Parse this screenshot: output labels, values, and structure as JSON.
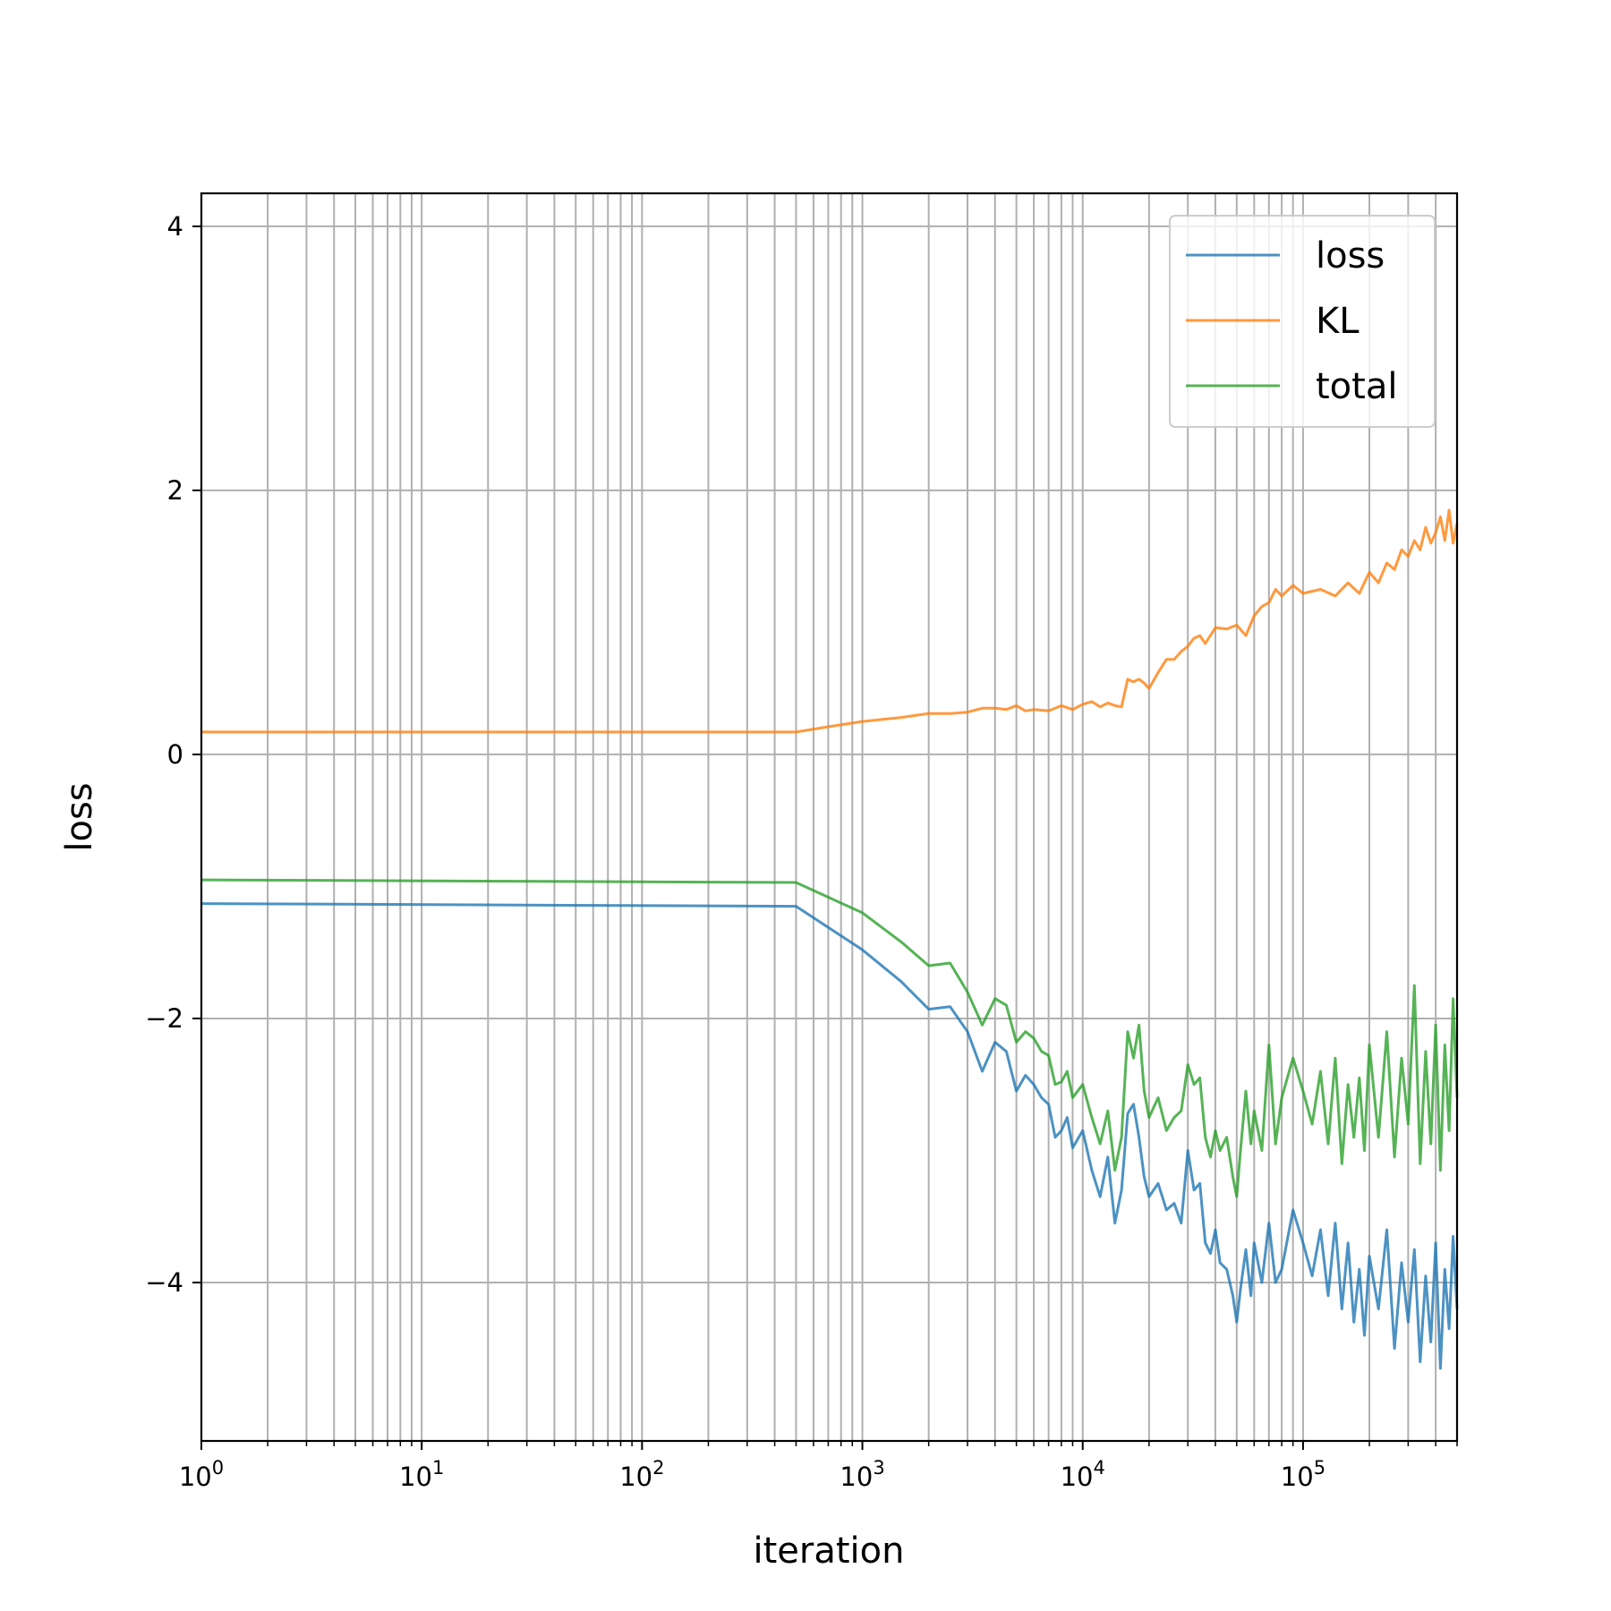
{
  "chart_data": {
    "type": "line",
    "title": "",
    "xlabel": "iteration",
    "ylabel": "loss",
    "xscale": "log",
    "xlim": [
      1,
      500000
    ],
    "ylim": [
      -5.2,
      4.25
    ],
    "grid": true,
    "grid_minor_x": true,
    "legend_position": "top-right",
    "x_ticks": [
      {
        "value": 1,
        "base": "10",
        "exp": "0"
      },
      {
        "value": 10,
        "base": "10",
        "exp": "1"
      },
      {
        "value": 100,
        "base": "10",
        "exp": "2"
      },
      {
        "value": 1000,
        "base": "10",
        "exp": "3"
      },
      {
        "value": 10000,
        "base": "10",
        "exp": "4"
      },
      {
        "value": 100000,
        "base": "10",
        "exp": "5"
      }
    ],
    "y_ticks": [
      {
        "value": -4,
        "label": "−4"
      },
      {
        "value": -2,
        "label": "−2"
      },
      {
        "value": 0,
        "label": "0"
      },
      {
        "value": 2,
        "label": "2"
      },
      {
        "value": 4,
        "label": "4"
      }
    ],
    "series": [
      {
        "name": "loss",
        "color": "#1f77b4",
        "points": [
          [
            1,
            -1.13
          ],
          [
            500,
            -1.15
          ],
          [
            1000,
            -1.48
          ],
          [
            1500,
            -1.72
          ],
          [
            2000,
            -1.93
          ],
          [
            2500,
            -1.91
          ],
          [
            3000,
            -2.1
          ],
          [
            3500,
            -2.4
          ],
          [
            4000,
            -2.18
          ],
          [
            4500,
            -2.25
          ],
          [
            5000,
            -2.55
          ],
          [
            5500,
            -2.43
          ],
          [
            6000,
            -2.5
          ],
          [
            6500,
            -2.6
          ],
          [
            7000,
            -2.65
          ],
          [
            7500,
            -2.9
          ],
          [
            8000,
            -2.85
          ],
          [
            8500,
            -2.75
          ],
          [
            9000,
            -2.98
          ],
          [
            10000,
            -2.85
          ],
          [
            11000,
            -3.15
          ],
          [
            12000,
            -3.35
          ],
          [
            13000,
            -3.05
          ],
          [
            14000,
            -3.55
          ],
          [
            15000,
            -3.3
          ],
          [
            16000,
            -2.72
          ],
          [
            17000,
            -2.65
          ],
          [
            18000,
            -2.9
          ],
          [
            19000,
            -3.2
          ],
          [
            20000,
            -3.35
          ],
          [
            22000,
            -3.25
          ],
          [
            24000,
            -3.45
          ],
          [
            26000,
            -3.4
          ],
          [
            28000,
            -3.55
          ],
          [
            30000,
            -3.0
          ],
          [
            32000,
            -3.3
          ],
          [
            34000,
            -3.25
          ],
          [
            36000,
            -3.7
          ],
          [
            38000,
            -3.78
          ],
          [
            40000,
            -3.6
          ],
          [
            42000,
            -3.85
          ],
          [
            45000,
            -3.9
          ],
          [
            48000,
            -4.1
          ],
          [
            50000,
            -4.3
          ],
          [
            52000,
            -4.05
          ],
          [
            55000,
            -3.75
          ],
          [
            58000,
            -4.1
          ],
          [
            60000,
            -3.7
          ],
          [
            65000,
            -4.0
          ],
          [
            70000,
            -3.55
          ],
          [
            75000,
            -4.0
          ],
          [
            80000,
            -3.9
          ],
          [
            90000,
            -3.45
          ],
          [
            100000,
            -3.7
          ],
          [
            110000,
            -3.95
          ],
          [
            120000,
            -3.6
          ],
          [
            130000,
            -4.1
          ],
          [
            140000,
            -3.55
          ],
          [
            150000,
            -4.2
          ],
          [
            160000,
            -3.7
          ],
          [
            170000,
            -4.3
          ],
          [
            180000,
            -3.9
          ],
          [
            190000,
            -4.4
          ],
          [
            200000,
            -3.8
          ],
          [
            220000,
            -4.2
          ],
          [
            240000,
            -3.6
          ],
          [
            260000,
            -4.5
          ],
          [
            280000,
            -3.85
          ],
          [
            300000,
            -4.3
          ],
          [
            320000,
            -3.75
          ],
          [
            340000,
            -4.6
          ],
          [
            360000,
            -3.95
          ],
          [
            380000,
            -4.45
          ],
          [
            400000,
            -3.7
          ],
          [
            420000,
            -4.65
          ],
          [
            440000,
            -3.9
          ],
          [
            460000,
            -4.35
          ],
          [
            480000,
            -3.65
          ],
          [
            500000,
            -4.2
          ]
        ]
      },
      {
        "name": "KL",
        "color": "#ff7f0e",
        "points": [
          [
            1,
            0.17
          ],
          [
            500,
            0.17
          ],
          [
            700,
            0.21
          ],
          [
            1000,
            0.25
          ],
          [
            1500,
            0.28
          ],
          [
            2000,
            0.31
          ],
          [
            2500,
            0.31
          ],
          [
            3000,
            0.32
          ],
          [
            3500,
            0.35
          ],
          [
            4000,
            0.35
          ],
          [
            4500,
            0.34
          ],
          [
            5000,
            0.37
          ],
          [
            5500,
            0.33
          ],
          [
            6000,
            0.34
          ],
          [
            7000,
            0.33
          ],
          [
            8000,
            0.37
          ],
          [
            9000,
            0.34
          ],
          [
            10000,
            0.38
          ],
          [
            11000,
            0.4
          ],
          [
            12000,
            0.36
          ],
          [
            13000,
            0.39
          ],
          [
            14000,
            0.37
          ],
          [
            15000,
            0.36
          ],
          [
            16000,
            0.57
          ],
          [
            17000,
            0.55
          ],
          [
            18000,
            0.57
          ],
          [
            19000,
            0.54
          ],
          [
            20000,
            0.5
          ],
          [
            22000,
            0.62
          ],
          [
            24000,
            0.72
          ],
          [
            26000,
            0.72
          ],
          [
            28000,
            0.78
          ],
          [
            30000,
            0.82
          ],
          [
            32000,
            0.88
          ],
          [
            34000,
            0.9
          ],
          [
            36000,
            0.84
          ],
          [
            40000,
            0.96
          ],
          [
            45000,
            0.95
          ],
          [
            50000,
            0.98
          ],
          [
            55000,
            0.9
          ],
          [
            60000,
            1.05
          ],
          [
            65000,
            1.12
          ],
          [
            70000,
            1.15
          ],
          [
            75000,
            1.25
          ],
          [
            80000,
            1.2
          ],
          [
            90000,
            1.28
          ],
          [
            100000,
            1.22
          ],
          [
            120000,
            1.25
          ],
          [
            140000,
            1.2
          ],
          [
            160000,
            1.3
          ],
          [
            180000,
            1.22
          ],
          [
            200000,
            1.38
          ],
          [
            220000,
            1.3
          ],
          [
            240000,
            1.45
          ],
          [
            260000,
            1.4
          ],
          [
            280000,
            1.55
          ],
          [
            300000,
            1.5
          ],
          [
            320000,
            1.62
          ],
          [
            340000,
            1.55
          ],
          [
            360000,
            1.72
          ],
          [
            380000,
            1.6
          ],
          [
            400000,
            1.68
          ],
          [
            420000,
            1.8
          ],
          [
            440000,
            1.62
          ],
          [
            460000,
            1.85
          ],
          [
            480000,
            1.6
          ],
          [
            500000,
            1.75
          ]
        ]
      },
      {
        "name": "total",
        "color": "#2ca02c",
        "points": [
          [
            1,
            -0.95
          ],
          [
            500,
            -0.97
          ],
          [
            1000,
            -1.2
          ],
          [
            1500,
            -1.42
          ],
          [
            2000,
            -1.6
          ],
          [
            2500,
            -1.58
          ],
          [
            3000,
            -1.8
          ],
          [
            3500,
            -2.05
          ],
          [
            4000,
            -1.85
          ],
          [
            4500,
            -1.9
          ],
          [
            5000,
            -2.18
          ],
          [
            5500,
            -2.1
          ],
          [
            6000,
            -2.15
          ],
          [
            6500,
            -2.25
          ],
          [
            7000,
            -2.28
          ],
          [
            7500,
            -2.5
          ],
          [
            8000,
            -2.48
          ],
          [
            8500,
            -2.4
          ],
          [
            9000,
            -2.6
          ],
          [
            10000,
            -2.5
          ],
          [
            11000,
            -2.75
          ],
          [
            12000,
            -2.95
          ],
          [
            13000,
            -2.7
          ],
          [
            14000,
            -3.15
          ],
          [
            15000,
            -2.9
          ],
          [
            16000,
            -2.1
          ],
          [
            17000,
            -2.3
          ],
          [
            18000,
            -2.05
          ],
          [
            19000,
            -2.55
          ],
          [
            20000,
            -2.75
          ],
          [
            22000,
            -2.6
          ],
          [
            24000,
            -2.85
          ],
          [
            26000,
            -2.75
          ],
          [
            28000,
            -2.7
          ],
          [
            30000,
            -2.35
          ],
          [
            32000,
            -2.5
          ],
          [
            34000,
            -2.45
          ],
          [
            36000,
            -2.9
          ],
          [
            38000,
            -3.05
          ],
          [
            40000,
            -2.85
          ],
          [
            42000,
            -3.0
          ],
          [
            45000,
            -2.9
          ],
          [
            48000,
            -3.2
          ],
          [
            50000,
            -3.35
          ],
          [
            52000,
            -3.0
          ],
          [
            55000,
            -2.55
          ],
          [
            58000,
            -2.95
          ],
          [
            60000,
            -2.7
          ],
          [
            65000,
            -3.0
          ],
          [
            70000,
            -2.2
          ],
          [
            75000,
            -2.95
          ],
          [
            80000,
            -2.6
          ],
          [
            90000,
            -2.3
          ],
          [
            100000,
            -2.55
          ],
          [
            110000,
            -2.8
          ],
          [
            120000,
            -2.4
          ],
          [
            130000,
            -2.95
          ],
          [
            140000,
            -2.3
          ],
          [
            150000,
            -3.1
          ],
          [
            160000,
            -2.5
          ],
          [
            170000,
            -2.9
          ],
          [
            180000,
            -2.45
          ],
          [
            190000,
            -3.0
          ],
          [
            200000,
            -2.2
          ],
          [
            220000,
            -2.9
          ],
          [
            240000,
            -2.1
          ],
          [
            260000,
            -3.05
          ],
          [
            280000,
            -2.3
          ],
          [
            300000,
            -2.8
          ],
          [
            320000,
            -1.75
          ],
          [
            340000,
            -3.1
          ],
          [
            360000,
            -2.25
          ],
          [
            380000,
            -2.95
          ],
          [
            400000,
            -2.05
          ],
          [
            420000,
            -3.15
          ],
          [
            440000,
            -2.2
          ],
          [
            460000,
            -2.85
          ],
          [
            480000,
            -1.85
          ],
          [
            500000,
            -2.6
          ]
        ]
      }
    ]
  }
}
